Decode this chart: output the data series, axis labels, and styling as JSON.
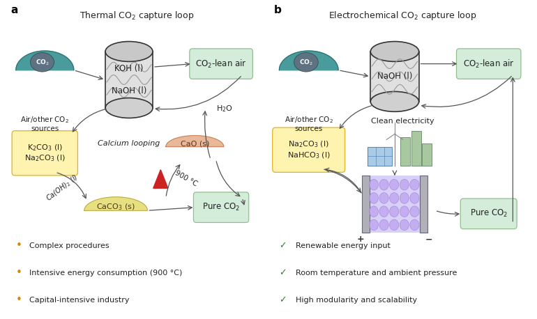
{
  "bg_color": "#ffffff",
  "panel_a_title": "Thermal CO$_2$ capture loop",
  "panel_b_title": "Electrochemical CO$_2$ capture loop",
  "panel_a_label": "a",
  "panel_b_label": "b",
  "green_box_color": "#d4edda",
  "green_box_edge": "#90c090",
  "yellow_box_color": "#fff3b0",
  "yellow_box_edge": "#e0b020",
  "arrow_color": "#555555",
  "text_color": "#222222",
  "panel_a_items": [
    "Complex procedures",
    "Intensive energy consumption (900 °C)",
    "Capital-intensive industry"
  ],
  "panel_b_items": [
    "Renewable energy input",
    "Room temperature and ambient pressure",
    "High modularity and scalability"
  ],
  "bullet_color_a": "#d4860a",
  "check_color_b": "#2e7d32"
}
